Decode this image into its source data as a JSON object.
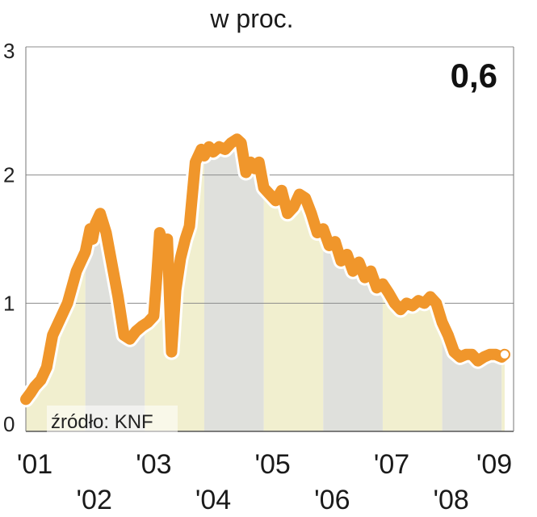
{
  "chart_data": {
    "type": "area",
    "title": "w proc.",
    "callout": "0,6",
    "source": "źródło: KNF",
    "ylim": [
      0,
      3
    ],
    "yticks": [
      {
        "value": 0,
        "label": "0"
      },
      {
        "value": 1,
        "label": "1"
      },
      {
        "value": 2,
        "label": "2"
      },
      {
        "value": 3,
        "label": "3"
      }
    ],
    "xlim": [
      2001.0,
      2009.2
    ],
    "year_labels": [
      {
        "x": 2001.15,
        "label": "'01",
        "row": 0
      },
      {
        "x": 2002.15,
        "label": "'02",
        "row": 1
      },
      {
        "x": 2003.15,
        "label": "'03",
        "row": 0
      },
      {
        "x": 2004.15,
        "label": "'04",
        "row": 1
      },
      {
        "x": 2005.15,
        "label": "'05",
        "row": 0
      },
      {
        "x": 2006.15,
        "label": "'06",
        "row": 1
      },
      {
        "x": 2007.15,
        "label": "'07",
        "row": 0
      },
      {
        "x": 2008.15,
        "label": "'08",
        "row": 1
      },
      {
        "x": 2009.05,
        "label": "'09",
        "row": 0
      }
    ],
    "year_bands": [
      {
        "from": 2001.0,
        "to": 2002.0,
        "color": "#f1efcf"
      },
      {
        "from": 2002.0,
        "to": 2003.0,
        "color": "#dfe0dc"
      },
      {
        "from": 2003.0,
        "to": 2004.0,
        "color": "#f1efcf"
      },
      {
        "from": 2004.0,
        "to": 2005.0,
        "color": "#dfe0dc"
      },
      {
        "from": 2005.0,
        "to": 2006.0,
        "color": "#f1efcf"
      },
      {
        "from": 2006.0,
        "to": 2007.0,
        "color": "#dfe0dc"
      },
      {
        "from": 2007.0,
        "to": 2008.0,
        "color": "#f1efcf"
      },
      {
        "from": 2008.0,
        "to": 2009.0,
        "color": "#dfe0dc"
      },
      {
        "from": 2009.0,
        "to": 2009.2,
        "color": "#f1efcf"
      }
    ],
    "line_color": "#f0962b",
    "x": [
      2001.0,
      2001.08,
      2001.15,
      2001.25,
      2001.35,
      2001.45,
      2001.55,
      2001.7,
      2001.85,
      2002.0,
      2002.08,
      2002.12,
      2002.17,
      2002.25,
      2002.35,
      2002.45,
      2002.55,
      2002.65,
      2002.75,
      2002.85,
      2002.95,
      2003.05,
      2003.15,
      2003.2,
      2003.25,
      2003.32,
      2003.38,
      2003.45,
      2003.52,
      2003.6,
      2003.68,
      2003.75,
      2003.85,
      2003.95,
      2004.0,
      2004.08,
      2004.15,
      2004.25,
      2004.35,
      2004.45,
      2004.55,
      2004.62,
      2004.7,
      2004.78,
      2004.85,
      2004.92,
      2005.0,
      2005.1,
      2005.2,
      2005.3,
      2005.4,
      2005.5,
      2005.6,
      2005.7,
      2005.8,
      2005.9,
      2006.0,
      2006.1,
      2006.2,
      2006.3,
      2006.4,
      2006.5,
      2006.6,
      2006.7,
      2006.8,
      2006.9,
      2007.0,
      2007.1,
      2007.2,
      2007.3,
      2007.4,
      2007.5,
      2007.6,
      2007.7,
      2007.8,
      2007.9,
      2008.0,
      2008.1,
      2008.2,
      2008.3,
      2008.4,
      2008.5,
      2008.6,
      2008.7,
      2008.8,
      2008.9,
      2009.0,
      2009.05
    ],
    "y": [
      0.25,
      0.3,
      0.35,
      0.4,
      0.5,
      0.75,
      0.85,
      1.0,
      1.25,
      1.4,
      1.58,
      1.5,
      1.62,
      1.7,
      1.55,
      1.3,
      1.05,
      0.75,
      0.72,
      0.78,
      0.82,
      0.85,
      0.9,
      1.2,
      1.55,
      1.45,
      1.5,
      0.62,
      1.1,
      1.35,
      1.5,
      1.6,
      2.1,
      2.2,
      2.15,
      2.22,
      2.18,
      2.22,
      2.2,
      2.25,
      2.28,
      2.25,
      2.02,
      2.1,
      2.05,
      2.1,
      1.9,
      1.85,
      1.8,
      1.88,
      1.7,
      1.75,
      1.85,
      1.82,
      1.7,
      1.55,
      1.58,
      1.45,
      1.48,
      1.33,
      1.38,
      1.25,
      1.32,
      1.2,
      1.25,
      1.12,
      1.15,
      1.08,
      1.0,
      0.95,
      1.0,
      0.98,
      1.02,
      1.0,
      1.05,
      1.0,
      0.85,
      0.75,
      0.62,
      0.58,
      0.6,
      0.6,
      0.55,
      0.58,
      0.6,
      0.6,
      0.58,
      0.6
    ],
    "line_width": 14
  }
}
